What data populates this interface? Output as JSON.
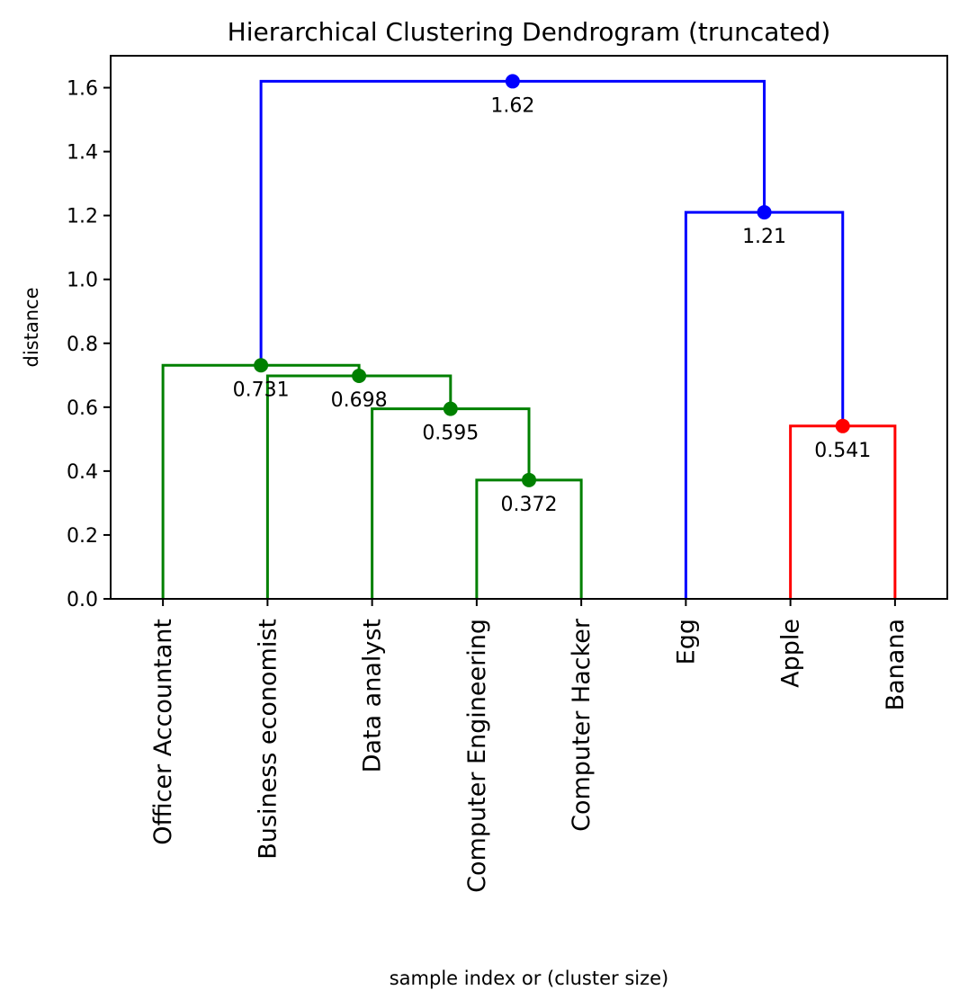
{
  "chart_data": {
    "type": "dendrogram",
    "title": "Hierarchical Clustering Dendrogram (truncated)",
    "xlabel": "sample index or (cluster size)",
    "ylabel": "distance",
    "ylim": [
      0,
      1.7
    ],
    "yticks": [
      0.0,
      0.2,
      0.4,
      0.6,
      0.8,
      1.0,
      1.2,
      1.4,
      1.6
    ],
    "ytick_labels": [
      "0.0",
      "0.2",
      "0.4",
      "0.6",
      "0.8",
      "1.0",
      "1.2",
      "1.4",
      "1.6"
    ],
    "leaves": [
      "Officer Accountant",
      "Business economist",
      "Data analyst",
      "Computer Engineering",
      "Computer Hacker",
      "Egg",
      "Apple",
      "Banana"
    ],
    "colors": {
      "green": "#008000",
      "blue": "#0000ff",
      "red": "#ff0000"
    },
    "links": [
      {
        "left": "Computer Engineering",
        "right": "Computer Hacker",
        "distance": 0.372,
        "label": "0.372",
        "color": "#008000"
      },
      {
        "left": "Data analyst",
        "right": "Computer Engineering + Computer Hacker",
        "distance": 0.595,
        "label": "0.595",
        "color": "#008000"
      },
      {
        "left": "Business economist",
        "right": "Data analyst + Computer Engineering + Computer Hacker",
        "distance": 0.698,
        "label": "0.698",
        "color": "#008000"
      },
      {
        "left": "Officer Accountant",
        "right": "Business economist + Data analyst + Computer Engineering + Computer Hacker",
        "distance": 0.731,
        "label": "0.731",
        "color": "#008000"
      },
      {
        "left": "Apple",
        "right": "Banana",
        "distance": 0.541,
        "label": "0.541",
        "color": "#ff0000"
      },
      {
        "left": "Egg",
        "right": "Apple + Banana",
        "distance": 1.21,
        "label": "1.21",
        "color": "#0000ff"
      },
      {
        "left": "Officer Accountant + Business economist + Data analyst + Computer Engineering + Computer Hacker",
        "right": "Egg + Apple + Banana",
        "distance": 1.62,
        "label": "1.62",
        "color": "#0000ff"
      }
    ]
  }
}
